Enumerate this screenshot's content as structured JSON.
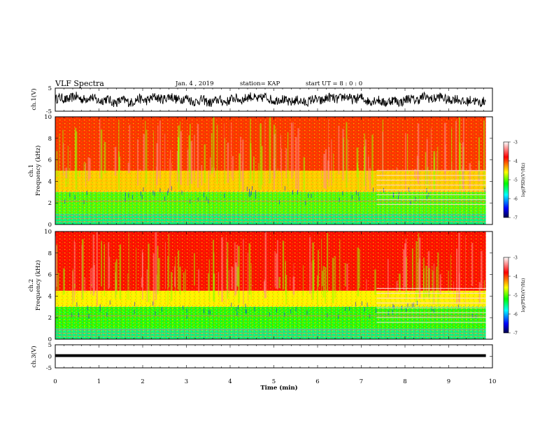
{
  "header": {
    "title": "VLF Spectra",
    "date": "Jan. 4 , 2019",
    "station": "station= KAP",
    "start": "start UT =  8 : 0 : 0"
  },
  "colors": {
    "colormap": [
      "#00008b",
      "#0000ff",
      "#00ffff",
      "#00ff00",
      "#ffff00",
      "#ff0000",
      "#ffffff"
    ],
    "trace": "#000000"
  },
  "chart_data": [
    {
      "type": "line",
      "panel": "ch1-waveform",
      "ylabel": "ch.1(V)",
      "ylim": [
        -5,
        5
      ],
      "ytick_labels": [
        "5",
        "-5"
      ],
      "xlim": [
        0,
        10
      ],
      "description_of_values": "noisy waveform fluctuating roughly between -3 and 4 V",
      "x_end": 9.85
    },
    {
      "type": "heatmap",
      "panel": "ch1-spectrogram",
      "ylabel": "ch.1\nFrequency (kHz)",
      "ylim": [
        0,
        10
      ],
      "ytick_labels": [
        "0",
        "2",
        "4",
        "6",
        "8",
        "10"
      ],
      "xlim": [
        0,
        10
      ],
      "x_end": 9.85,
      "colorbar": {
        "label": "log(PSD)(V²/Hz)",
        "range": [
          -7,
          -3
        ],
        "tick_labels": [
          "-3",
          "-4",
          "-5",
          "-6",
          "-7"
        ]
      },
      "bands": [
        {
          "freq_khz": [
            0,
            1
          ],
          "level": -5.3
        },
        {
          "freq_khz": [
            1,
            3
          ],
          "level": -4.8
        },
        {
          "freq_khz": [
            3,
            5
          ],
          "level": -4.2
        },
        {
          "freq_khz": [
            5,
            10
          ],
          "level": -3.8
        }
      ],
      "features": [
        {
          "x_min": 7.35,
          "freq_khz": [
            1.9,
            5.2
          ],
          "note": "horizontal narrowband lines"
        }
      ]
    },
    {
      "type": "heatmap",
      "panel": "ch2-spectrogram",
      "ylabel": "ch.2\nFrequency (kHz)",
      "ylim": [
        0,
        10
      ],
      "ytick_labels": [
        "0",
        "2",
        "4",
        "6",
        "8",
        "10"
      ],
      "xlim": [
        0,
        10
      ],
      "x_end": 9.85,
      "colorbar": {
        "label": "log(PSD)(V²/Hz)",
        "range": [
          -7,
          -3
        ],
        "tick_labels": [
          "-3",
          "-4",
          "-5",
          "-6",
          "-7"
        ]
      },
      "bands": [
        {
          "freq_khz": [
            0,
            1
          ],
          "level": -5.3
        },
        {
          "freq_khz": [
            1,
            3
          ],
          "level": -4.9
        },
        {
          "freq_khz": [
            3,
            4.5
          ],
          "level": -4.3
        },
        {
          "freq_khz": [
            4.5,
            10
          ],
          "level": -3.7
        }
      ],
      "features": [
        {
          "x_min": 7.35,
          "freq_khz": [
            1.6,
            5.0
          ],
          "note": "horizontal narrowband lines"
        }
      ]
    },
    {
      "type": "line",
      "panel": "ch3-waveform",
      "ylabel": "ch.3(V)",
      "ylim": [
        -5,
        5
      ],
      "ytick_labels": [
        "5",
        "0",
        "-5"
      ],
      "xlim": [
        0,
        10
      ],
      "x_end": 9.85,
      "constant_value": 0.0
    }
  ],
  "xaxis": {
    "label": "Time (min)",
    "tick_labels": [
      "0",
      "1",
      "2",
      "3",
      "4",
      "5",
      "6",
      "7",
      "8",
      "9",
      "10"
    ]
  }
}
